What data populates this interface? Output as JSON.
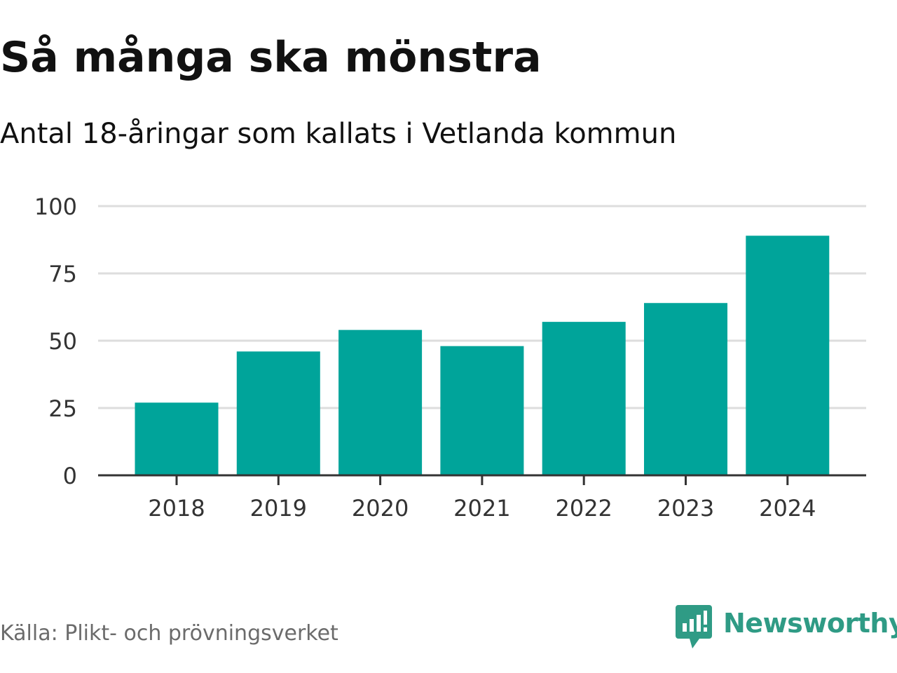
{
  "title": "Så många ska mönstra",
  "subtitle": "Antal 18-åringar som kallats i Vetlanda kommun",
  "source": "Källa: Plikt- och prövningsverket",
  "brand": {
    "name": "Newsworthy",
    "icon": "newsworthy-logo-icon",
    "color": "#2f9b85"
  },
  "colors": {
    "bar": "#00a49a",
    "grid": "#dddddd",
    "axis": "#333333"
  },
  "chart_data": {
    "type": "bar",
    "categories": [
      "2018",
      "2019",
      "2020",
      "2021",
      "2022",
      "2023",
      "2024"
    ],
    "values": [
      27,
      46,
      54,
      48,
      57,
      64,
      89
    ],
    "xlabel": "",
    "ylabel": "",
    "ylim": [
      0,
      100
    ],
    "yticks": [
      0,
      25,
      50,
      75,
      100
    ],
    "grid": true,
    "legend": "none"
  }
}
